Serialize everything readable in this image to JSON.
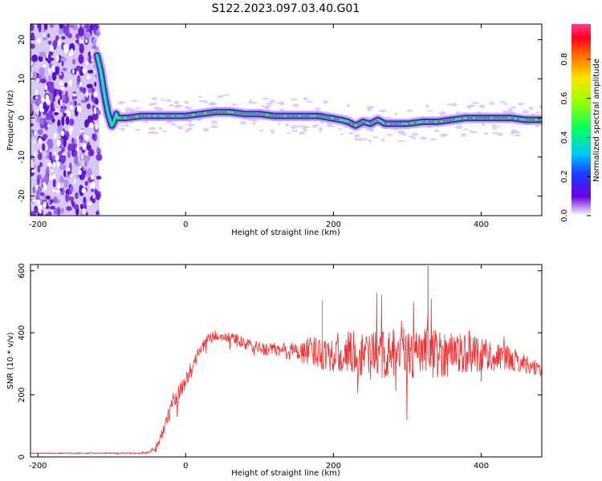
{
  "title": "S122.2023.097.03.40.G01",
  "chart_data": [
    {
      "type": "heatmap",
      "xlabel": "Height of straight line (km)",
      "ylabel": "Frequency (Hz)",
      "xlim": [
        -210,
        482
      ],
      "ylim": [
        -25,
        24
      ],
      "xticks": [
        -200,
        0,
        200,
        400
      ],
      "yticks": [
        20,
        10,
        0,
        -10,
        -20
      ],
      "colorbar": {
        "label": "Normalized spectral amplitude",
        "range": [
          0,
          0.98
        ],
        "ticks": [
          0.0,
          0.2,
          0.4,
          0.6,
          0.8
        ]
      },
      "noise_region_x": [
        -210,
        -117
      ],
      "doppler_curve": {
        "x": [
          -120,
          -115,
          -110,
          -105,
          -100,
          -97,
          -94,
          -92,
          -90,
          -86,
          -80,
          -60,
          -40,
          -20,
          0,
          20,
          40,
          60,
          80,
          100,
          120,
          140,
          160,
          180,
          195,
          210,
          220,
          230,
          240,
          250,
          260,
          270,
          280,
          300,
          320,
          340,
          360,
          380,
          400,
          420,
          440,
          460,
          480
        ],
        "y": [
          16,
          12,
          6,
          1,
          -2,
          -1,
          1,
          0,
          0,
          0,
          0,
          0.5,
          0.5,
          0.5,
          0.5,
          1,
          1.5,
          1.5,
          1,
          1,
          0.5,
          0.5,
          0.5,
          0.5,
          0,
          -0.5,
          -1,
          -2,
          -1,
          -1.5,
          -0.5,
          -1.5,
          -1.5,
          -1.5,
          -1,
          -1,
          -0.5,
          0,
          0,
          0,
          0,
          -0.5,
          -0.5
        ]
      }
    },
    {
      "type": "line",
      "xlabel": "Height of straight line (km)",
      "ylabel": "SNR (10 * v/v)",
      "xlim": [
        -210,
        482
      ],
      "ylim": [
        0,
        620
      ],
      "xticks": [
        -200,
        0,
        200,
        400
      ],
      "yticks": [
        0,
        200,
        400,
        600
      ],
      "color": "#ee3333",
      "series": [
        {
          "x": [
            -210,
            -150,
            -100,
            -60,
            -50,
            -40,
            -30,
            -20,
            -10,
            0,
            10,
            20,
            30,
            40,
            50,
            60,
            70,
            80,
            100,
            120,
            140,
            160,
            180,
            200,
            220,
            240,
            260,
            280,
            300,
            320,
            340,
            360,
            380,
            400,
            420,
            440,
            460,
            482
          ],
          "values": [
            12,
            12,
            12,
            12,
            14,
            30,
            90,
            150,
            205,
            245,
            300,
            345,
            380,
            390,
            385,
            385,
            375,
            365,
            350,
            345,
            340,
            340,
            340,
            335,
            335,
            330,
            330,
            330,
            330,
            335,
            335,
            335,
            340,
            335,
            325,
            315,
            300,
            280
          ],
          "noise_amplitude": [
            2,
            2,
            2,
            2,
            3,
            15,
            25,
            28,
            30,
            25,
            25,
            20,
            18,
            18,
            15,
            18,
            20,
            20,
            20,
            25,
            30,
            40,
            55,
            65,
            70,
            75,
            80,
            85,
            85,
            85,
            80,
            75,
            70,
            60,
            45,
            40,
            30,
            25
          ]
        }
      ]
    }
  ]
}
